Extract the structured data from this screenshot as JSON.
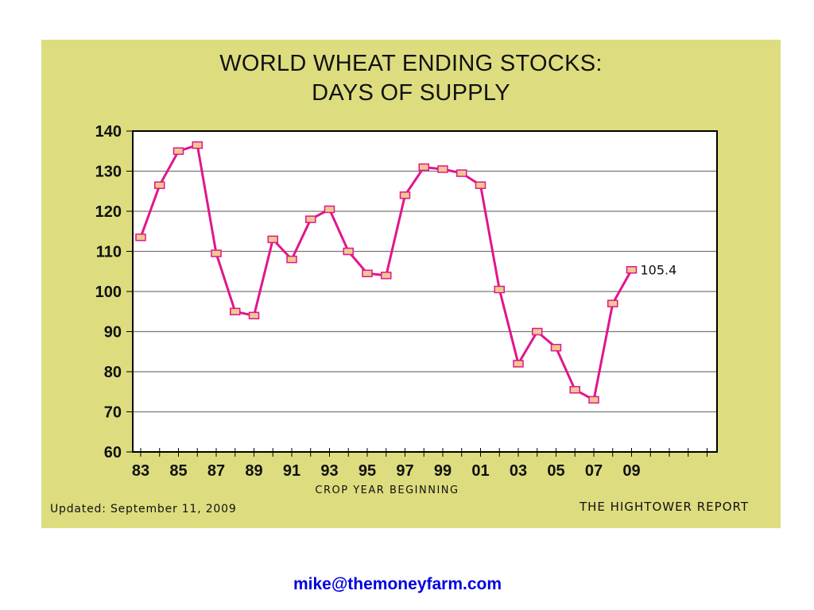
{
  "chart_data": {
    "type": "line",
    "title": [
      "WORLD WHEAT ENDING STOCKS:",
      "DAYS OF SUPPLY"
    ],
    "xlabel": "CROP YEAR BEGINNING",
    "ylabel": "",
    "ylim": [
      60,
      140
    ],
    "yticks": [
      60,
      70,
      80,
      90,
      100,
      110,
      120,
      130,
      140
    ],
    "xticklabels": [
      "83",
      "85",
      "87",
      "89",
      "91",
      "93",
      "95",
      "97",
      "99",
      "01",
      "03",
      "05",
      "07",
      "09"
    ],
    "grid": true,
    "x": [
      "83",
      "84",
      "85",
      "86",
      "87",
      "88",
      "89",
      "90",
      "91",
      "92",
      "93",
      "94",
      "95",
      "96",
      "97",
      "98",
      "99",
      "00",
      "01",
      "02",
      "03",
      "04",
      "05",
      "06",
      "07",
      "08",
      "09"
    ],
    "series": [
      {
        "values": [
          113.5,
          126.5,
          135,
          136.5,
          109.5,
          95,
          94,
          113,
          108,
          118,
          120.5,
          110,
          104.5,
          104,
          124,
          131,
          130.5,
          129.5,
          126.5,
          100.5,
          82,
          90,
          86,
          75.5,
          73,
          97,
          105.4
        ]
      }
    ],
    "annotations": [
      {
        "x": "09",
        "label": "105.4"
      }
    ],
    "colors": {
      "line": "#e0168c",
      "marker_fill": "#f0c890",
      "panel": "#dddd80",
      "plot": "#ffffff"
    }
  },
  "footer": {
    "updated": "Updated: September 11, 2009",
    "source": "THE HIGHTOWER REPORT"
  },
  "contact": {
    "email": "mike@themoneyfarm.com"
  }
}
